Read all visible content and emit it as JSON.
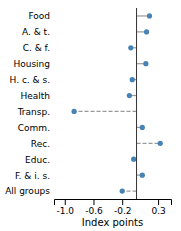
{
  "chart_data": {
    "type": "lollipop",
    "orientation": "horizontal",
    "categories": [
      "Food",
      "A. & t.",
      "C. & f.",
      "Housing",
      "H. c. & s.",
      "Health",
      "Transp.",
      "Comm.",
      "Rec.",
      "Educ.",
      "F. & i. s.",
      "All groups"
    ],
    "series": [
      {
        "line_style": "solid",
        "values": [
          0.18,
          0.14,
          -0.08,
          0.13,
          -0.06,
          -0.1,
          null,
          0.08,
          null,
          -0.04,
          0.08,
          null
        ]
      },
      {
        "line_style": "dashed",
        "values": [
          null,
          null,
          null,
          null,
          null,
          null,
          -0.87,
          null,
          0.33,
          null,
          null,
          -0.2
        ]
      }
    ],
    "ref_value": 0.0,
    "xlim": [
      -1.15,
      0.48
    ],
    "xticks": [
      {
        "value": -1.0,
        "label": "-1.0"
      },
      -0.6,
      -0.2,
      0.3
    ],
    "xlabel": "Index points",
    "grid": false
  }
}
